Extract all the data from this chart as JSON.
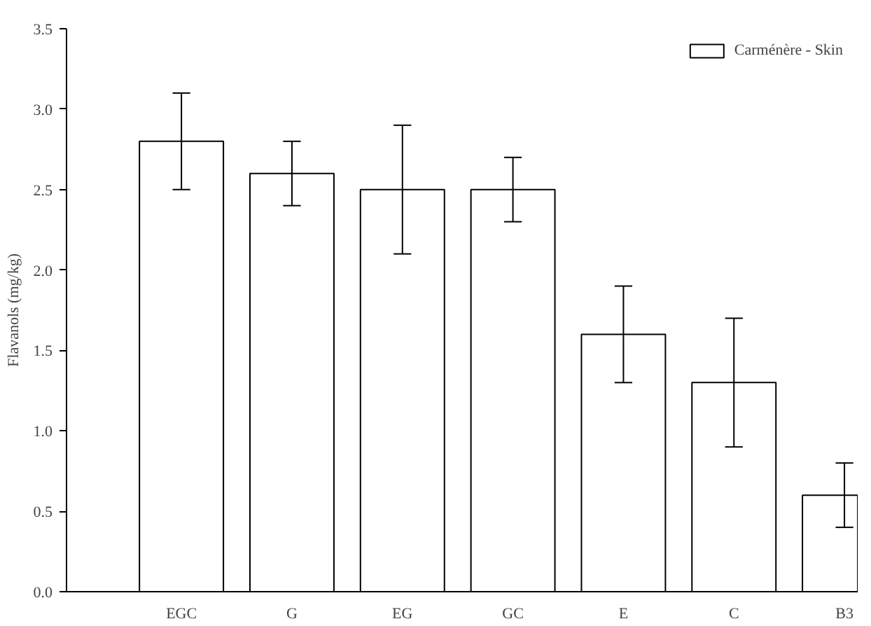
{
  "chart_data": {
    "type": "bar",
    "ylabel": "Flavanols (mg/kg)",
    "categories": [
      "EGC",
      "G",
      "EG",
      "GC",
      "E",
      "C",
      "B3"
    ],
    "series": [
      {
        "name": "Carménère - Skin",
        "color": "#ffffff",
        "values": [
          2.8,
          2.6,
          2.5,
          2.5,
          1.6,
          1.3,
          0.6
        ],
        "errors": [
          0.3,
          0.2,
          0.4,
          0.2,
          0.3,
          0.4,
          0.2
        ]
      }
    ],
    "ylim": [
      0,
      3.5
    ],
    "yticks": [
      {
        "value": 0,
        "label": "0.0"
      },
      {
        "value": 0.5,
        "label": "0.5"
      },
      {
        "value": 1,
        "label": "1.0"
      },
      {
        "value": 1.5,
        "label": "1.5"
      },
      {
        "value": 2,
        "label": "2.0"
      },
      {
        "value": 2.5,
        "label": "2.5"
      },
      {
        "value": 3,
        "label": "3.0"
      },
      {
        "value": 3.5,
        "label": "3.5"
      }
    ],
    "grid": false,
    "legend": "top right"
  }
}
